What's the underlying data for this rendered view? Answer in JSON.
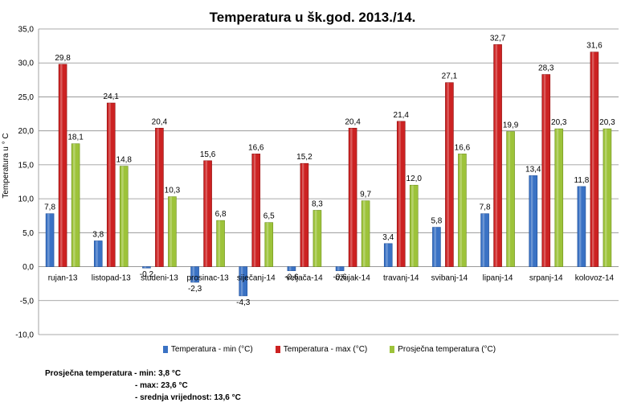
{
  "chart_data": {
    "type": "bar",
    "title": "Temperatura  u  šk.god. 2013./14.",
    "ylabel": "Temperatura u ° C",
    "xlabel": "",
    "ylim": [
      -10,
      35
    ],
    "yticks": [
      "-10,0",
      "-5,0",
      "0,0",
      "5,0",
      "10,0",
      "15,0",
      "20,0",
      "25,0",
      "30,0",
      "35,0"
    ],
    "grid": true,
    "legend_position": "bottom",
    "categories": [
      "rujan-13",
      "listopad-13",
      "studeni-13",
      "prosinac-13",
      "siječanj-14",
      "veljača-14",
      "ožujak-14",
      "travanj-14",
      "svibanj-14",
      "lipanj-14",
      "srpanj-14",
      "kolovoz-14"
    ],
    "series": [
      {
        "name": "Temperatura - min (°C)",
        "color": "#3a72c4",
        "values": [
          7.8,
          3.8,
          -0.2,
          -2.3,
          -4.3,
          -0.6,
          -0.6,
          3.4,
          5.8,
          7.8,
          13.4,
          11.8
        ],
        "labels": [
          "7,8",
          "3,8",
          "-0,2",
          "-2,3",
          "-4,3",
          "-0,6",
          "-0,6",
          "3,4",
          "5,8",
          "7,8",
          "13,4",
          "11,8"
        ]
      },
      {
        "name": "Temperatura - max (°C)",
        "color": "#cc2222",
        "values": [
          29.8,
          24.1,
          20.4,
          15.6,
          16.6,
          15.2,
          20.4,
          21.4,
          27.1,
          32.7,
          28.3,
          31.6
        ],
        "labels": [
          "29,8",
          "24,1",
          "20,4",
          "15,6",
          "16,6",
          "15,2",
          "20,4",
          "21,4",
          "27,1",
          "32,7",
          "28,3",
          "31,6"
        ]
      },
      {
        "name": "Prosječna temperatura (°C)",
        "color": "#9dc33a",
        "values": [
          18.1,
          14.8,
          10.3,
          6.8,
          6.5,
          8.3,
          9.7,
          12.0,
          16.6,
          19.9,
          20.3,
          20.3
        ],
        "labels": [
          "18,1",
          "14,8",
          "10,3",
          "6,8",
          "6,5",
          "8,3",
          "9,7",
          "12,0",
          "16,6",
          "19,9",
          "20,3",
          "20,3"
        ]
      }
    ]
  },
  "notes": {
    "line1": "Prosječna temperatura - min: 3,8 °C",
    "line2": "- max: 23,6 °C",
    "line3": "- srednja vrijednost: 13,6 °C"
  }
}
